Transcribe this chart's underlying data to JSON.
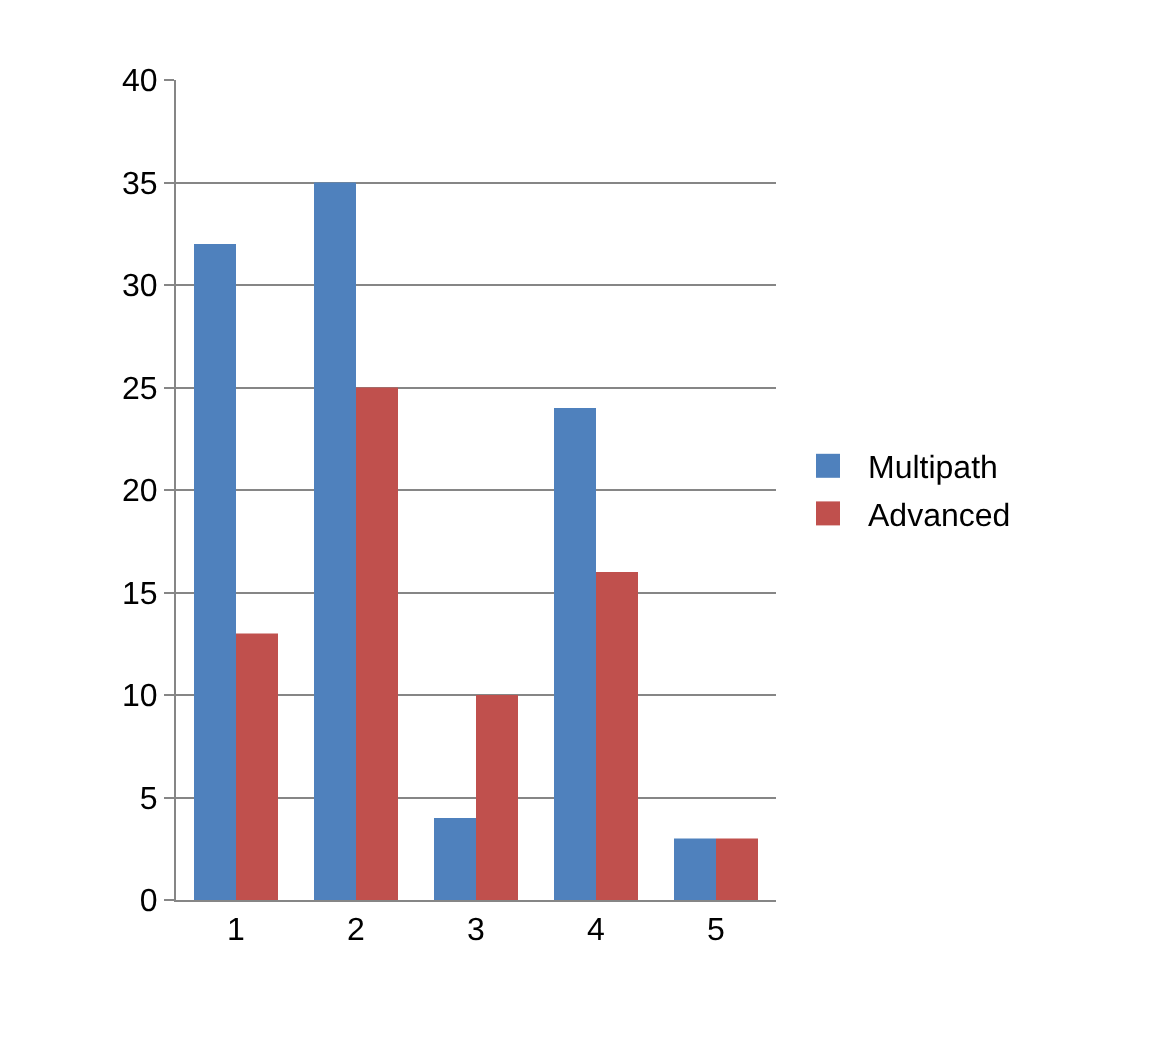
{
  "chart_data": {
    "type": "bar",
    "categories": [
      "1",
      "2",
      "3",
      "4",
      "5"
    ],
    "series": [
      {
        "name": "Multipath",
        "color": "#4f81bd",
        "values": [
          32,
          35,
          4,
          24,
          3
        ]
      },
      {
        "name": "Advanced",
        "color": "#c0504d",
        "values": [
          13,
          25,
          10,
          16,
          3
        ]
      }
    ],
    "ylim": [
      0,
      40
    ],
    "yticks": [
      0,
      5,
      10,
      15,
      20,
      25,
      30,
      35,
      40
    ],
    "grid": "y",
    "legend": "right"
  }
}
